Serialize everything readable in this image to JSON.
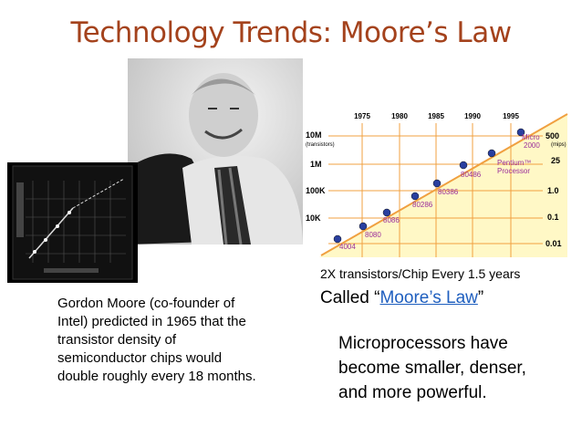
{
  "title": "Technology Trends: Moore’s Law",
  "figure": {
    "years": [
      "1975",
      "1980",
      "1985",
      "1990",
      "1995"
    ],
    "left_axis": [
      "10M",
      "(transistors)",
      "1M",
      "100K",
      "10K"
    ],
    "right_axis": [
      "500",
      "(mips)",
      "25",
      "1.0",
      "0.1",
      "0.01"
    ],
    "processors": [
      "4004",
      "8080",
      "8086",
      "80286",
      "80386",
      "80486",
      "Pentium™",
      "Processor",
      "Micro",
      "2000"
    ]
  },
  "caption": {
    "line1": "2X transistors/Chip Every 1.5 years",
    "prefix": "Called “",
    "link": "Moore’s Law",
    "suffix": "”"
  },
  "left_text": [
    "Gordon Moore (co-founder of",
    "Intel) predicted in 1965 that the",
    "transistor density of",
    "semiconductor chips would",
    "double roughly every 18 months."
  ],
  "right_text": [
    "Microprocessors have",
    "become smaller, denser,",
    "and more powerful."
  ]
}
